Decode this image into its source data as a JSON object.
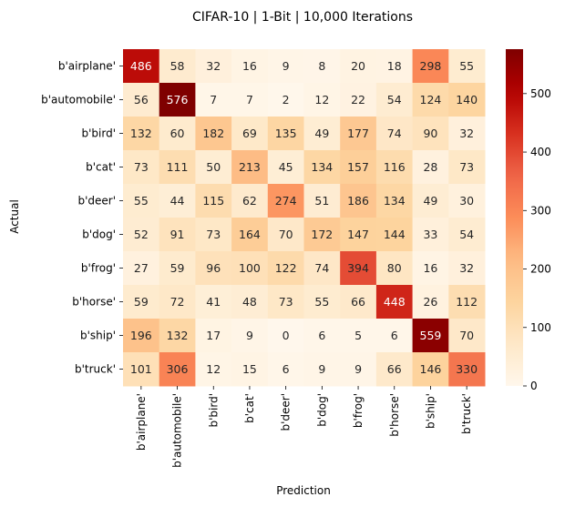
{
  "chart_data": {
    "type": "heatmap",
    "title": "CIFAR-10 | 1-Bit | 10,000 Iterations",
    "xlabel": "Prediction",
    "ylabel": "Actual",
    "x_categories": [
      "b'airplane'",
      "b'automobile'",
      "b'bird'",
      "b'cat'",
      "b'deer'",
      "b'dog'",
      "b'frog'",
      "b'horse'",
      "b'ship'",
      "b'truck'"
    ],
    "y_categories": [
      "b'airplane'",
      "b'automobile'",
      "b'bird'",
      "b'cat'",
      "b'deer'",
      "b'dog'",
      "b'frog'",
      "b'horse'",
      "b'ship'",
      "b'truck'"
    ],
    "values": [
      [
        486,
        58,
        32,
        16,
        9,
        8,
        20,
        18,
        298,
        55
      ],
      [
        56,
        576,
        7,
        7,
        2,
        12,
        22,
        54,
        124,
        140
      ],
      [
        132,
        60,
        182,
        69,
        135,
        49,
        177,
        74,
        90,
        32
      ],
      [
        73,
        111,
        50,
        213,
        45,
        134,
        157,
        116,
        28,
        73
      ],
      [
        55,
        44,
        115,
        62,
        274,
        51,
        186,
        134,
        49,
        30
      ],
      [
        52,
        91,
        73,
        164,
        70,
        172,
        147,
        144,
        33,
        54
      ],
      [
        27,
        59,
        96,
        100,
        122,
        74,
        394,
        80,
        16,
        32
      ],
      [
        59,
        72,
        41,
        48,
        73,
        55,
        66,
        448,
        26,
        112
      ],
      [
        196,
        132,
        17,
        9,
        0,
        6,
        5,
        6,
        559,
        70
      ],
      [
        101,
        306,
        12,
        15,
        6,
        9,
        9,
        66,
        146,
        330
      ]
    ],
    "colormap": "OrRd",
    "colorbar": {
      "range": [
        0,
        576
      ],
      "ticks": [
        0,
        100,
        200,
        300,
        400,
        500
      ]
    },
    "grid": false
  }
}
